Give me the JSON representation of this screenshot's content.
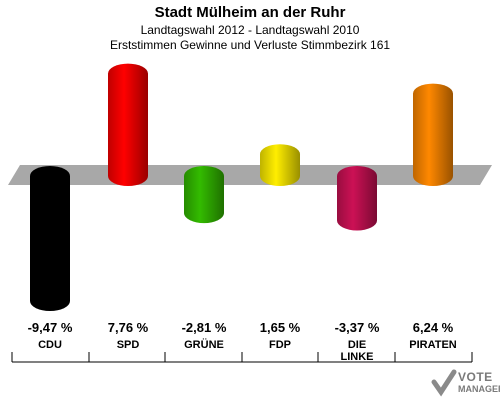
{
  "header": {
    "title": "Stadt Mülheim an der Ruhr",
    "subtitle": "Landtagswahl 2012 - Landtagswahl 2010",
    "subtitle2": "Erststimmen Gewinne und Verluste Stimmbezirk 161"
  },
  "watermark": {
    "line1": "VOTE",
    "line2": "MANAGER"
  },
  "chart_data": {
    "type": "bar",
    "title": "Stadt Mülheim an der Ruhr",
    "subtitle": "Landtagswahl 2012 - Landtagswahl 2010 / Erststimmen Gewinne und Verluste Stimmbezirk 161",
    "categories": [
      "CDU",
      "SPD",
      "GRÜNE",
      "FDP",
      "DIE LINKE",
      "PIRATEN"
    ],
    "values": [
      -9.47,
      7.76,
      -2.81,
      1.65,
      -3.37,
      6.24
    ],
    "value_labels": [
      "-9,47 %",
      "7,76 %",
      "-2,81 %",
      "1,65 %",
      "-3,37 %",
      "6,24 %"
    ],
    "party_labels": [
      "CDU",
      "SPD",
      "GRÜNE",
      "FDP",
      "DIE\nLINKE",
      "PIRATEN"
    ],
    "colors": [
      "#000000",
      "#ff0000",
      "#33bb00",
      "#ffee00",
      "#cc1155",
      "#ff8800"
    ],
    "xlabel": "",
    "ylabel": "",
    "grid": false
  }
}
